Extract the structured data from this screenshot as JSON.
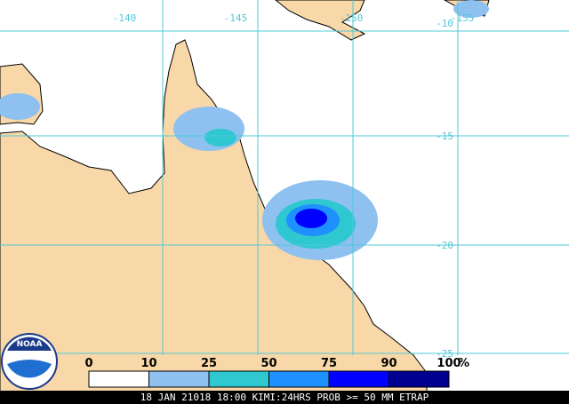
{
  "logo": "NOAA",
  "longitude_labels": [
    "-140",
    "-145",
    "-150",
    "-155"
  ],
  "latitude_labels": [
    "-10",
    "-15",
    "-20",
    "-25"
  ],
  "legend": {
    "ticks": [
      "0",
      "10",
      "25",
      "50",
      "75",
      "90",
      "100"
    ],
    "unit": "%",
    "colors": [
      "#ffffff",
      "#8ec0f0",
      "#30c8d0",
      "#1e90ff",
      "#0000ff",
      "#000090"
    ]
  },
  "caption": "18 JAN 21018 18:00 KIMI:24HRS PROB >= 50 MM ETRAP"
}
